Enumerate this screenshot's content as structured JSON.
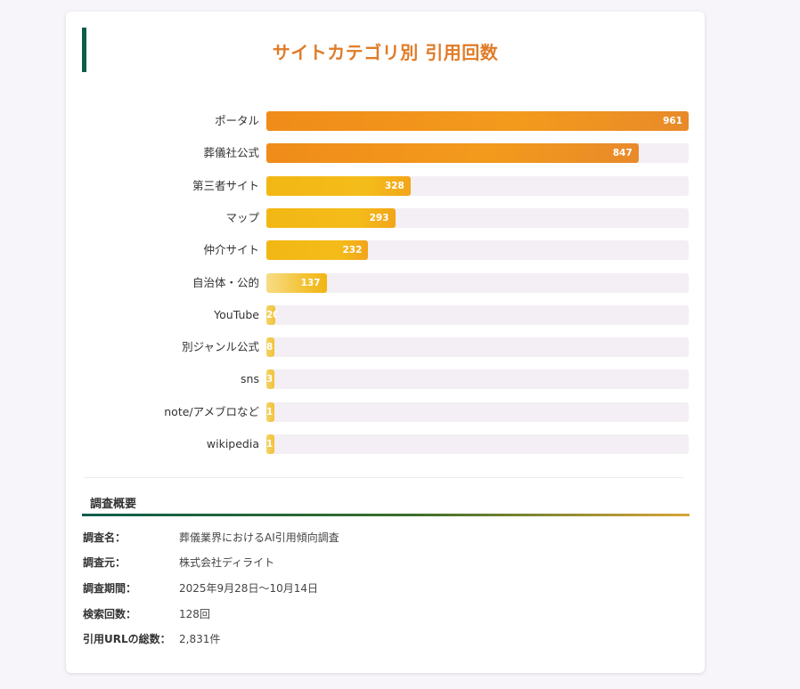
{
  "chart_data": {
    "type": "bar",
    "orientation": "horizontal",
    "title": "サイトカテゴリ別 引用回数",
    "categories": [
      "ポータル",
      "葬儀社公式",
      "第三者サイト",
      "マップ",
      "仲介サイト",
      "自治体・公的",
      "YouTube",
      "別ジャンル公式",
      "sns",
      "note/アメブロなど",
      "wikipedia"
    ],
    "values": [
      961,
      847,
      328,
      293,
      232,
      137,
      20,
      8,
      3,
      1,
      1
    ],
    "value_labels": [
      "961",
      "847",
      "328",
      "293",
      "232",
      "137",
      "20",
      "8",
      "3",
      "1",
      "1"
    ],
    "xlim": [
      0,
      961
    ],
    "grid": false,
    "legend": "none"
  },
  "colors": {
    "title": "#e07b28",
    "accent": "#0b5d4b",
    "bar_high": "#f08c1a",
    "bar_mid": "#f2b714",
    "bar_low": "#f7dc86",
    "track": "#f3eff4"
  },
  "summary": {
    "heading": "調査概要",
    "rows": [
      {
        "key": "調査名：",
        "value": "葬儀業界におけるAI引用傾向調査"
      },
      {
        "key": "調査元：",
        "value": "株式会社ディライト"
      },
      {
        "key": "調査期間：",
        "value": "2025年9月28日〜10月14日"
      },
      {
        "key": "検索回数：",
        "value": "128回"
      },
      {
        "key": "引用URLの総数：",
        "value": "2,831件"
      }
    ]
  }
}
